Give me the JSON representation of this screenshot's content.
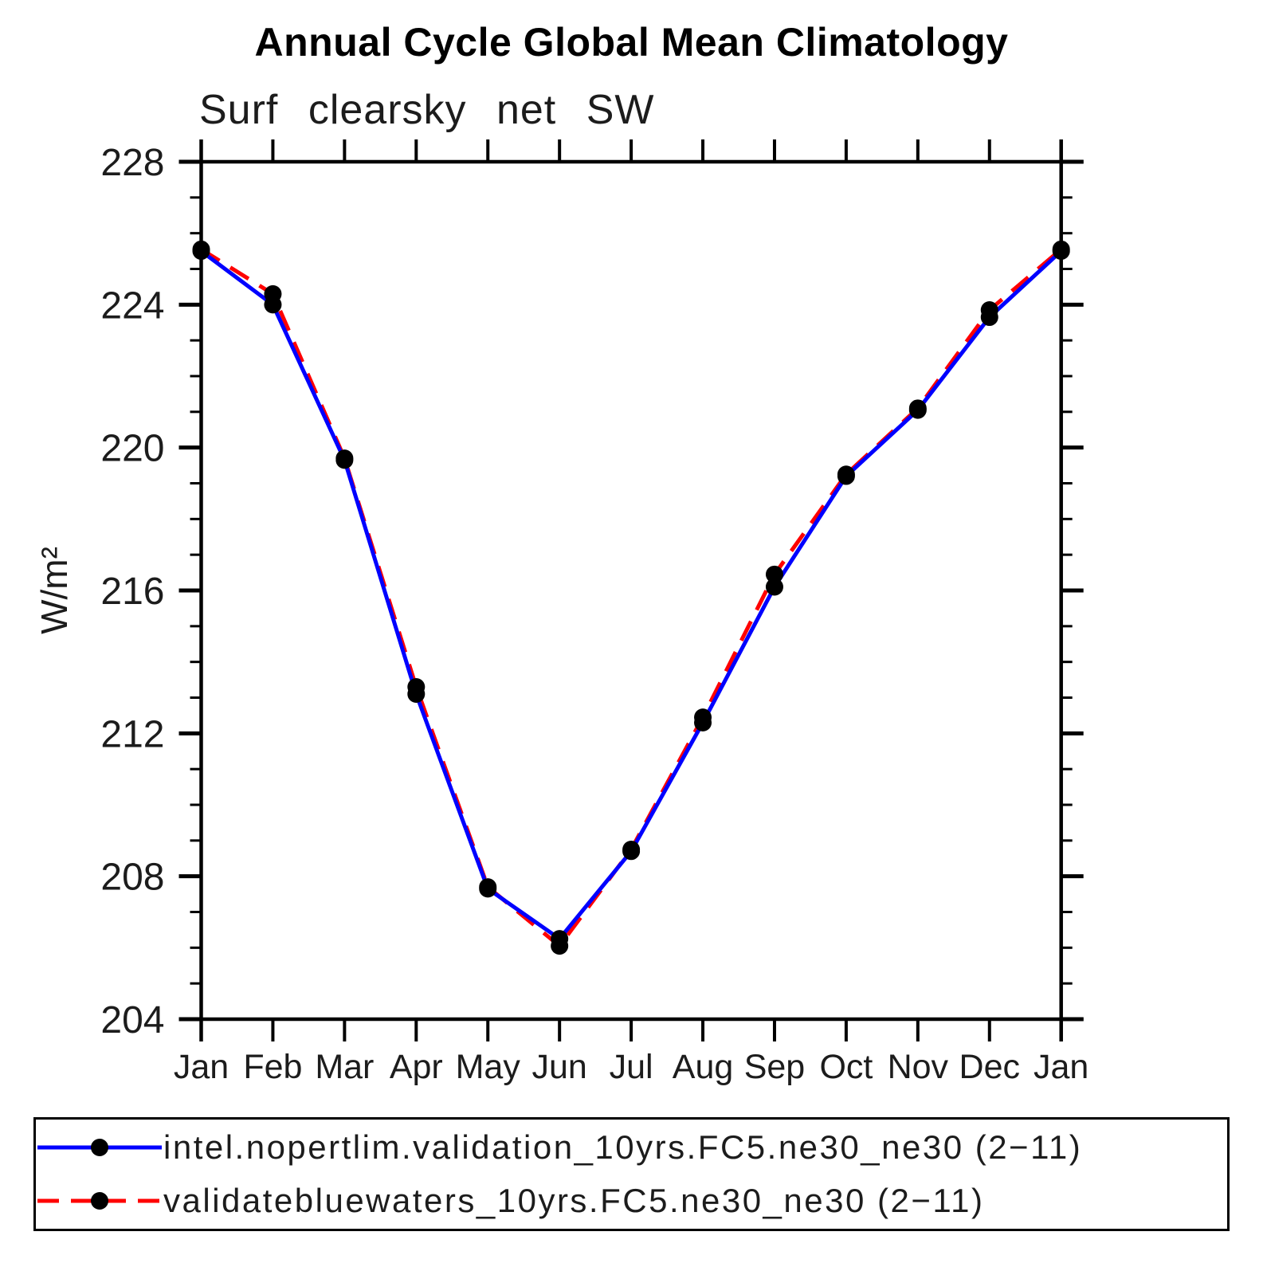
{
  "chart_data": {
    "type": "line",
    "title": "Annual Cycle Global Mean Climatology",
    "subtitle": "Surf clearsky net SW",
    "ylabel": "W/m²",
    "categories": [
      "Jan",
      "Feb",
      "Mar",
      "Apr",
      "May",
      "Jun",
      "Jul",
      "Aug",
      "Sep",
      "Oct",
      "Nov",
      "Dec",
      "Jan"
    ],
    "ylim": [
      204,
      228
    ],
    "ytick_major_step": 4,
    "ytick_minor_step": 1,
    "ytick_labels": [
      "204",
      "208",
      "212",
      "216",
      "220",
      "224",
      "228"
    ],
    "grid": false,
    "legend_position": "bottom",
    "marker": "filled-circle",
    "marker_color": "#000000",
    "axis_color": "#000000",
    "series": [
      {
        "name": "intel.nopertlim.validation_10yrs.FC5.ne30_ne30 (2−11)",
        "color": "#0000ff",
        "dash": "solid",
        "values": [
          225.5,
          224.0,
          219.65,
          213.1,
          207.65,
          206.25,
          208.7,
          212.3,
          216.1,
          219.2,
          221.05,
          223.65,
          225.5
        ]
      },
      {
        "name": "validatebluewaters_10yrs.FC5.ne30_ne30 (2−11)",
        "color": "#ff0000",
        "dash": "dashed",
        "values": [
          225.55,
          224.3,
          219.7,
          213.3,
          207.7,
          206.05,
          208.75,
          212.45,
          216.45,
          219.25,
          221.1,
          223.85,
          225.55
        ]
      }
    ]
  }
}
